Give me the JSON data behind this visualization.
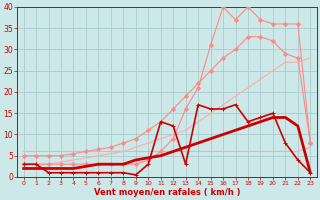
{
  "title": "",
  "xlabel": "Vent moyen/en rafales ( km/h )",
  "ylabel": "",
  "xlim": [
    -0.5,
    23.5
  ],
  "ylim": [
    0,
    40
  ],
  "xticks": [
    0,
    1,
    2,
    3,
    4,
    5,
    6,
    7,
    8,
    9,
    10,
    11,
    12,
    13,
    14,
    15,
    16,
    17,
    18,
    19,
    20,
    21,
    22,
    23
  ],
  "yticks": [
    0,
    5,
    10,
    15,
    20,
    25,
    30,
    35,
    40
  ],
  "background_color": "#cce8e8",
  "grid_color": "#aacccc",
  "lines": [
    {
      "x": [
        0,
        1,
        2,
        3,
        4,
        5,
        6,
        7,
        8,
        9,
        10,
        11,
        12,
        13,
        14,
        15,
        16,
        17,
        18,
        19,
        20,
        21,
        22,
        23
      ],
      "y": [
        6,
        6,
        6,
        6,
        6,
        6,
        6,
        6,
        6,
        6,
        6,
        6,
        6,
        6,
        6,
        6,
        6,
        6,
        6,
        6,
        6,
        6,
        6,
        7
      ],
      "color": "#ffaaaa",
      "linewidth": 0.8,
      "marker": null,
      "zorder": 1
    },
    {
      "x": [
        0,
        1,
        2,
        3,
        4,
        5,
        6,
        7,
        8,
        9,
        10,
        11,
        12,
        13,
        14,
        15,
        16,
        17,
        18,
        19,
        20,
        21,
        22,
        23
      ],
      "y": [
        3,
        3,
        3,
        3.5,
        4,
        4.5,
        5,
        5.5,
        6,
        7,
        8,
        9,
        10,
        11,
        13,
        15,
        17,
        19,
        21,
        23,
        25,
        27,
        27,
        28
      ],
      "color": "#ffaaaa",
      "linewidth": 0.8,
      "marker": null,
      "zorder": 2
    },
    {
      "x": [
        0,
        1,
        2,
        3,
        4,
        5,
        6,
        7,
        8,
        9,
        10,
        11,
        12,
        13,
        14,
        15,
        16,
        17,
        18,
        19,
        20,
        21,
        22,
        23
      ],
      "y": [
        3,
        3,
        3,
        3,
        3,
        3,
        3,
        3,
        3,
        3,
        4,
        6,
        9,
        16,
        21,
        31,
        40,
        37,
        40,
        37,
        36,
        36,
        36,
        8
      ],
      "color": "#ff8888",
      "linewidth": 0.8,
      "marker": "D",
      "markersize": 2.0,
      "zorder": 4
    },
    {
      "x": [
        0,
        1,
        2,
        3,
        4,
        5,
        6,
        7,
        8,
        9,
        10,
        11,
        12,
        13,
        14,
        15,
        16,
        17,
        18,
        19,
        20,
        21,
        22,
        23
      ],
      "y": [
        5,
        5,
        5,
        5,
        5.5,
        6,
        6.5,
        7,
        8,
        9,
        11,
        13,
        16,
        19,
        22,
        25,
        28,
        30,
        33,
        33,
        32,
        29,
        28,
        8
      ],
      "color": "#ff8888",
      "linewidth": 0.8,
      "marker": "D",
      "markersize": 2.0,
      "zorder": 3
    },
    {
      "x": [
        0,
        1,
        2,
        3,
        4,
        5,
        6,
        7,
        8,
        9,
        10,
        11,
        12,
        13,
        14,
        15,
        16,
        17,
        18,
        19,
        20,
        21,
        22,
        23
      ],
      "y": [
        3,
        3,
        1,
        1,
        1,
        1,
        1,
        1,
        1,
        0.5,
        3,
        13,
        12,
        3,
        17,
        16,
        16,
        17,
        13,
        14,
        15,
        8,
        4,
        1
      ],
      "color": "#cc0000",
      "linewidth": 1.2,
      "marker": "+",
      "markersize": 3.5,
      "zorder": 5
    },
    {
      "x": [
        0,
        1,
        2,
        3,
        4,
        5,
        6,
        7,
        8,
        9,
        10,
        11,
        12,
        13,
        14,
        15,
        16,
        17,
        18,
        19,
        20,
        21,
        22,
        23
      ],
      "y": [
        2,
        2,
        2,
        2,
        2,
        2.5,
        3,
        3,
        3,
        4,
        4.5,
        5,
        6,
        7,
        8,
        9,
        10,
        11,
        12,
        13,
        14,
        14,
        12,
        1
      ],
      "color": "#cc0000",
      "linewidth": 2.0,
      "marker": null,
      "zorder": 6
    }
  ]
}
